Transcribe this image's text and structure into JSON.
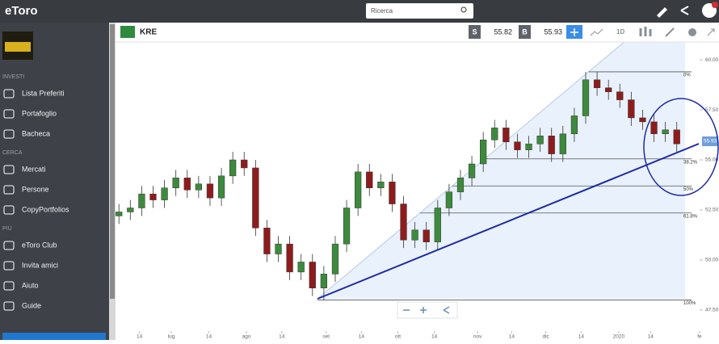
{
  "app": {
    "logo": "eToro",
    "search_placeholder": "Ricerca"
  },
  "sidebar": {
    "sections": [
      {
        "title": "INVESTI",
        "items": [
          "Lista Preferiti",
          "Portafoglio",
          "Bacheca"
        ]
      },
      {
        "title": "CERCA",
        "items": [
          "Mercati",
          "Persone",
          "CopyPortfolios"
        ]
      },
      {
        "title": "PIÙ",
        "items": [
          "eToro Club",
          "Invita amici",
          "Aiuto",
          "Guide"
        ]
      }
    ]
  },
  "chart_header": {
    "symbol": "KRE",
    "sell_label": "S",
    "sell_price": 55.82,
    "buy_label": "B",
    "buy_price": 55.93,
    "timeframe": "1D"
  },
  "chart_data": {
    "type": "candlestick",
    "open": [
      52.2,
      52.4,
      52.6,
      53.3,
      53.0,
      53.6,
      54.1,
      53.5,
      53.8,
      53.1,
      54.2,
      55.0,
      54.6,
      51.6,
      50.3,
      50.8,
      49.4,
      49.9,
      48.6,
      49.3,
      50.8,
      52.6,
      54.4,
      53.6,
      53.9,
      52.8,
      51.0,
      51.5,
      50.9,
      52.6,
      53.4,
      54.1,
      54.8,
      56.0,
      56.6,
      55.9,
      55.5,
      55.8,
      56.2,
      55.3,
      56.3,
      57.2,
      59.0,
      58.6,
      58.4,
      58.0,
      57.1,
      56.9,
      56.3,
      56.5
    ],
    "high": [
      52.8,
      53.0,
      53.7,
      53.7,
      54.0,
      54.5,
      54.5,
      54.2,
      54.2,
      54.6,
      55.4,
      55.4,
      55.0,
      52.0,
      51.2,
      51.2,
      50.3,
      50.3,
      49.7,
      51.2,
      53.0,
      54.8,
      54.8,
      54.3,
      54.3,
      53.2,
      51.9,
      51.9,
      53.0,
      53.8,
      54.5,
      55.2,
      56.4,
      57.0,
      57.0,
      56.3,
      56.2,
      56.6,
      56.6,
      56.7,
      57.6,
      59.4,
      59.4,
      59.0,
      58.8,
      58.4,
      57.5,
      57.3,
      56.9,
      56.9
    ],
    "low": [
      51.8,
      52.0,
      52.2,
      52.6,
      52.6,
      53.2,
      53.1,
      53.1,
      52.7,
      52.7,
      53.8,
      54.2,
      51.2,
      49.9,
      49.9,
      49.0,
      49.0,
      48.2,
      48.0,
      48.9,
      50.4,
      52.2,
      53.2,
      53.2,
      52.4,
      50.6,
      50.6,
      50.5,
      50.5,
      52.2,
      53.0,
      53.7,
      54.4,
      55.6,
      55.5,
      55.1,
      55.1,
      55.4,
      54.9,
      54.9,
      55.9,
      56.8,
      58.2,
      58.0,
      57.6,
      56.7,
      56.5,
      55.9,
      55.9,
      55.4
    ],
    "close": [
      52.4,
      52.6,
      53.3,
      53.0,
      53.6,
      54.1,
      53.5,
      53.8,
      53.1,
      54.2,
      55.0,
      54.6,
      51.6,
      50.3,
      50.8,
      49.4,
      49.9,
      48.6,
      49.3,
      50.8,
      52.6,
      54.4,
      53.6,
      53.9,
      52.8,
      51.0,
      51.5,
      50.9,
      52.6,
      53.4,
      54.1,
      54.8,
      56.0,
      56.6,
      55.9,
      55.5,
      55.8,
      56.2,
      55.3,
      56.3,
      57.2,
      59.0,
      58.6,
      58.4,
      58.0,
      57.1,
      56.9,
      56.3,
      56.5,
      55.8
    ],
    "up_color": "#3d8a3d",
    "down_color": "#8e1c1c",
    "xlim": [
      -0.3,
      52
    ],
    "xticks": [
      {
        "value": 1.8,
        "label": "14"
      },
      {
        "value": 4.6,
        "label": "lug"
      },
      {
        "value": 7.9,
        "label": "14"
      },
      {
        "value": 11.2,
        "label": "ago"
      },
      {
        "value": 14.3,
        "label": "14"
      },
      {
        "value": 18.2,
        "label": "set"
      },
      {
        "value": 21.3,
        "label": "14"
      },
      {
        "value": 24.5,
        "label": "ott"
      },
      {
        "value": 27.7,
        "label": "14"
      },
      {
        "value": 31.5,
        "label": "nov"
      },
      {
        "value": 34.5,
        "label": "14"
      },
      {
        "value": 37.5,
        "label": "dic"
      },
      {
        "value": 40.6,
        "label": "14"
      },
      {
        "value": 43.9,
        "label": "2020"
      },
      {
        "value": 46.7,
        "label": "14"
      },
      {
        "value": 51.0,
        "label": "fe"
      }
    ],
    "ylim": [
      46.45,
      60.97
    ],
    "yticks": [
      {
        "value": 47.5,
        "label": "47.50"
      },
      {
        "value": 50,
        "label": "50.00"
      },
      {
        "value": 52.5,
        "label": "52.50"
      },
      {
        "value": 55,
        "label": "55.00"
      },
      {
        "value": 57.5,
        "label": "57.50"
      },
      {
        "value": 60,
        "label": "60.00"
      }
    ],
    "fib_levels": [
      {
        "value": 59.4,
        "label": "0%"
      },
      {
        "value": 55.05,
        "label": "38.2%"
      },
      {
        "value": 53.7,
        "label": "50%"
      },
      {
        "value": 52.35,
        "label": "61.8%"
      },
      {
        "value": 48.0,
        "label": "100%"
      }
    ],
    "last_price": 55.93
  }
}
